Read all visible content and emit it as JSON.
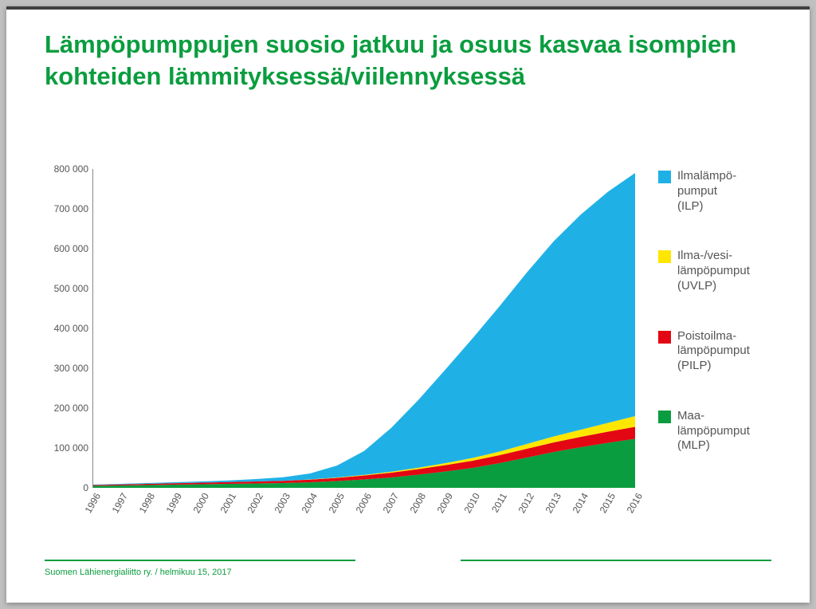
{
  "title": "Lämpöpumppujen suosio jatkuu ja osuus kasvaa isompien kohteiden lämmityksessä/viilennyksessä",
  "footer": "Suomen Lähienergialiitto ry. / helmikuu 15, 2017",
  "chart": {
    "type": "area",
    "background_color": "#ffffff",
    "axis_color": "#888888",
    "tick_fontsize": 12,
    "tick_color": "#555555",
    "ylim": [
      0,
      800000
    ],
    "ytick_step": 100000,
    "yticks": [
      0,
      100000,
      200000,
      300000,
      400000,
      500000,
      600000,
      700000,
      800000
    ],
    "ytick_labels": [
      "0",
      "100 000",
      "200 000",
      "300 000",
      "400 000",
      "500 000",
      "600 000",
      "700 000",
      "800 000"
    ],
    "categories": [
      "1996",
      "1997",
      "1998",
      "1999",
      "2000",
      "2001",
      "2002",
      "2003",
      "2004",
      "2005",
      "2006",
      "2007",
      "2008",
      "2009",
      "2010",
      "2011",
      "2012",
      "2013",
      "2014",
      "2015",
      "2016"
    ],
    "xtick_rotation": -60,
    "series": [
      {
        "key": "MLP",
        "label": "Maa-\nlämpöpumput\n(MLP)",
        "color": "#0a9d3f",
        "values": [
          5000,
          6000,
          7000,
          8000,
          9000,
          10000,
          11000,
          12000,
          14000,
          17000,
          21000,
          26000,
          33000,
          41000,
          50000,
          62000,
          76000,
          90000,
          102000,
          113000,
          123000
        ]
      },
      {
        "key": "PILP",
        "label": "Poistoilma-\nlämpöpumput\n(PILP)",
        "color": "#e30613",
        "values": [
          2000,
          2500,
          3000,
          3500,
          4000,
          4500,
          5000,
          5500,
          6500,
          8000,
          10000,
          12000,
          14000,
          16000,
          18000,
          20000,
          22000,
          24000,
          26000,
          28000,
          30000
        ]
      },
      {
        "key": "UVLP",
        "label": "Ilma-/vesi-\nlämpöpumput\n(UVLP)",
        "color": "#ffe600",
        "values": [
          0,
          0,
          0,
          0,
          0,
          0,
          0,
          0,
          500,
          1000,
          1500,
          2500,
          3500,
          5000,
          7000,
          9000,
          12000,
          15000,
          18000,
          22000,
          27000
        ]
      },
      {
        "key": "ILP",
        "label": "Ilmalämpö-\npumput\n(ILP)",
        "color": "#1fb1e6",
        "values": [
          1000,
          1500,
          2000,
          2500,
          3000,
          4000,
          6000,
          9000,
          15000,
          30000,
          60000,
          110000,
          170000,
          235000,
          300000,
          365000,
          430000,
          490000,
          540000,
          580000,
          610000
        ]
      }
    ],
    "legend": {
      "position": "right",
      "order": [
        "ILP",
        "UVLP",
        "PILP",
        "MLP"
      ],
      "label_fontsize": 15,
      "label_color": "#555555",
      "swatch_size": 16
    },
    "title_color": "#0a9d3f",
    "title_fontsize": 31,
    "title_weight": "bold",
    "footer_rule_color": "#0a9d3f"
  }
}
